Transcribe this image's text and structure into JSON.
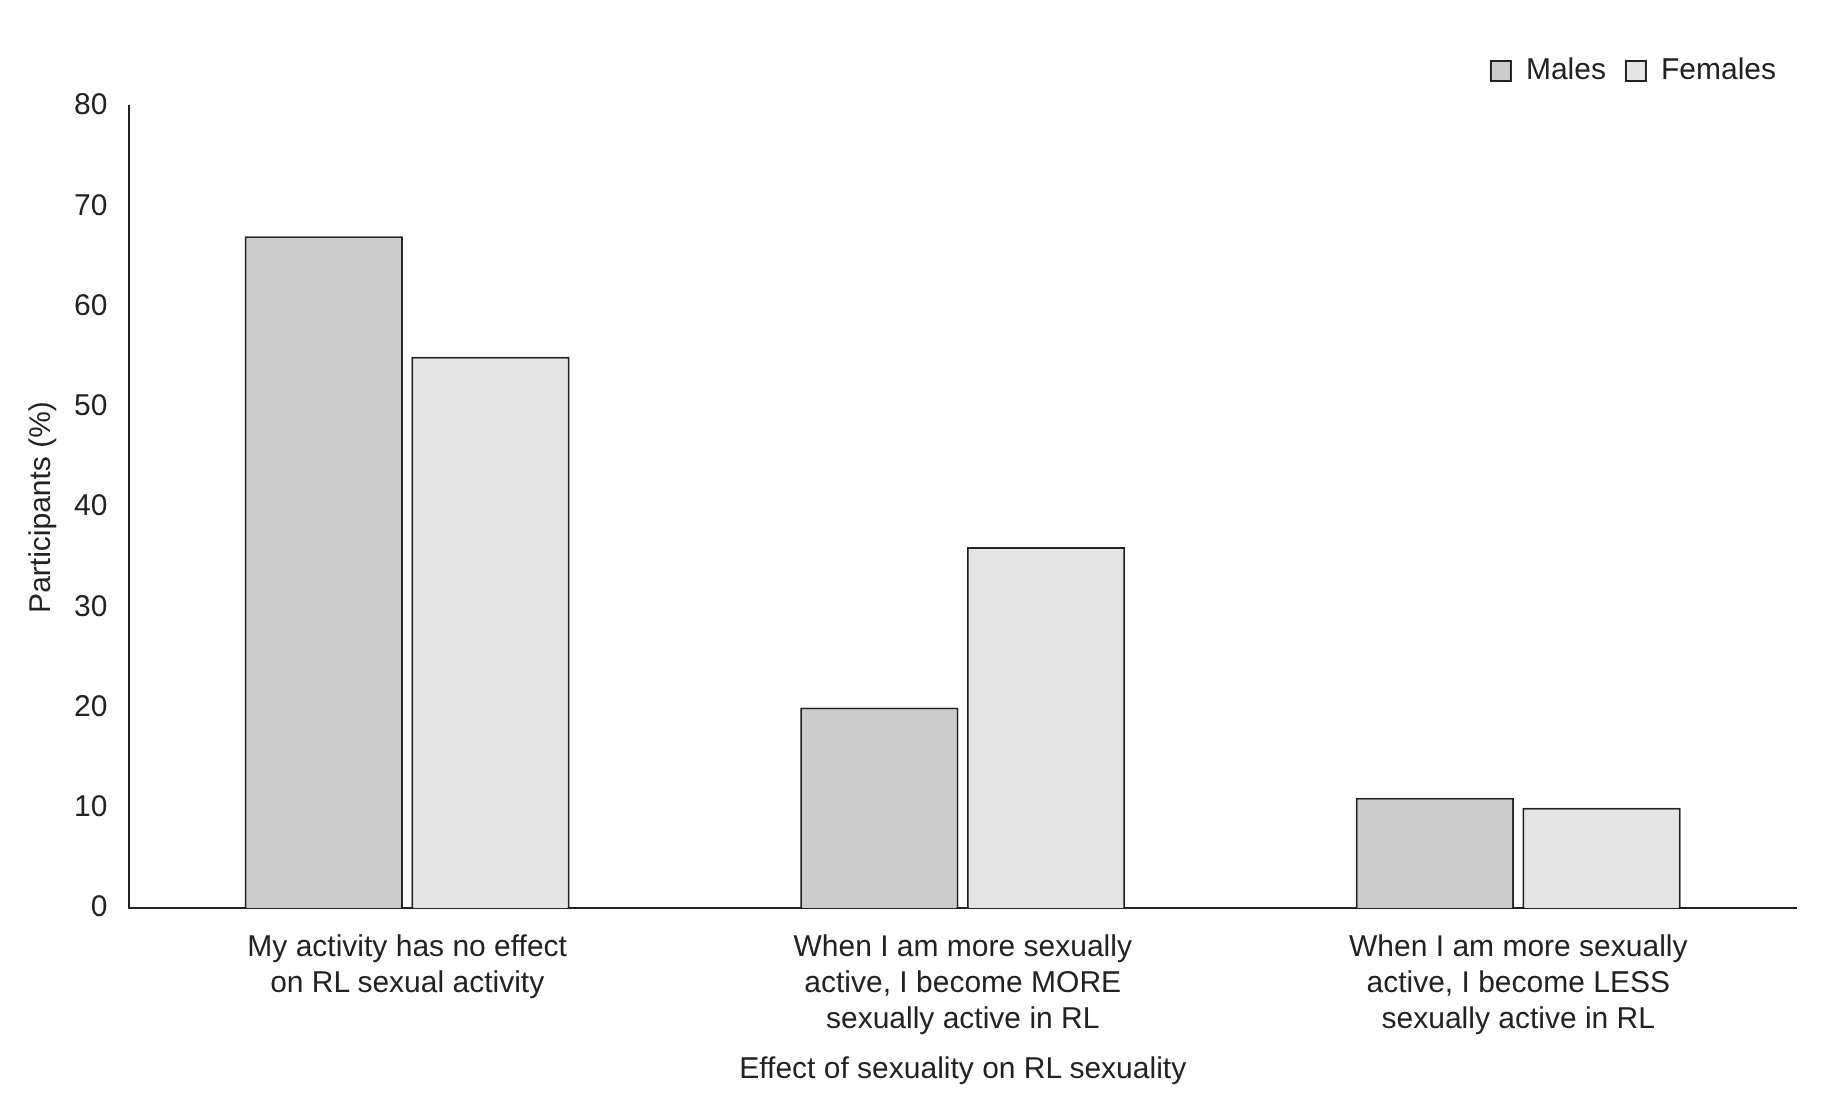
{
  "chart_data": {
    "type": "bar",
    "xlabel": "Effect of sexuality on RL sexuality",
    "ylabel": "Participants (%)",
    "categories": [
      "My activity has no effect on RL sexual activity",
      "When I am more sexually active, I become MORE sexually active in RL",
      "When I am more sexually active, I become LESS sexually active in RL"
    ],
    "series": [
      {
        "name": "Males",
        "color": "#cccccc",
        "values": [
          67,
          20,
          11
        ]
      },
      {
        "name": "Females",
        "color": "#e4e4e4",
        "values": [
          55,
          36,
          10
        ]
      }
    ],
    "ylim": [
      0,
      80
    ],
    "yticks": [
      0,
      10,
      20,
      30,
      40,
      50,
      60,
      70,
      80
    ],
    "grid": false,
    "legend": "top right"
  }
}
